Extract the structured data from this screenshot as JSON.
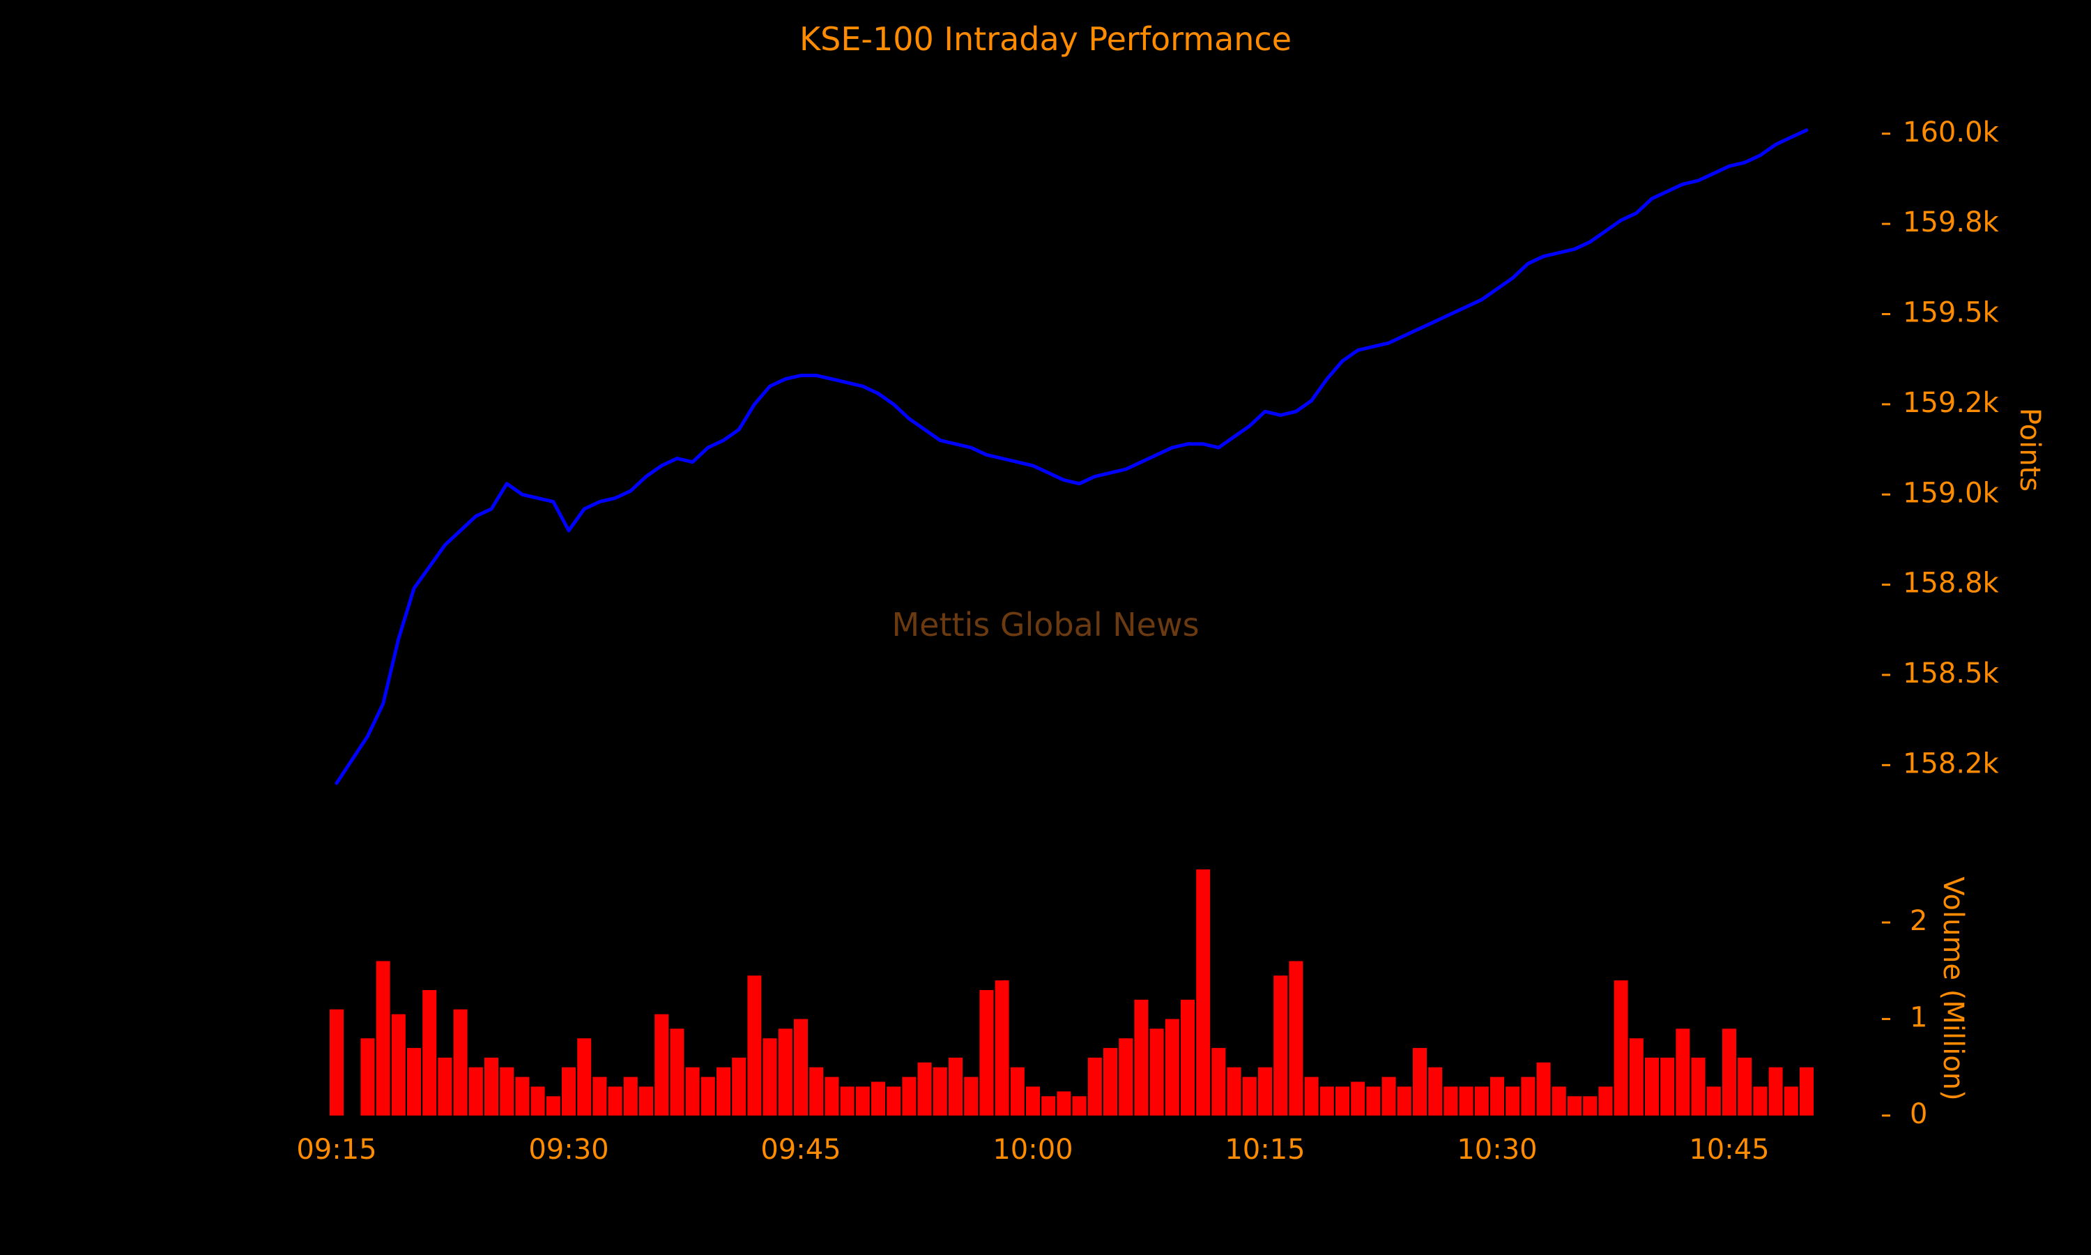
{
  "chart_data": {
    "type": "line",
    "title": "KSE-100 Intraday Performance",
    "watermark": "Mettis Global News",
    "price": {
      "ylabel": "Points",
      "ylim": [
        158100,
        160100
      ],
      "yticks": [
        158250,
        158500,
        158750,
        159000,
        159250,
        159500,
        159750,
        160000
      ],
      "ytick_labels": [
        "158.2k",
        "158.5k",
        "158.8k",
        "159.0k",
        "159.2k",
        "159.5k",
        "159.8k",
        "160.0k"
      ],
      "color": "#0000ff",
      "x": [
        "09:15",
        "09:17",
        "09:18",
        "09:19",
        "09:20",
        "09:21",
        "09:22",
        "09:23",
        "09:24",
        "09:25",
        "09:26",
        "09:27",
        "09:28",
        "09:29",
        "09:30",
        "09:31",
        "09:32",
        "09:33",
        "09:34",
        "09:35",
        "09:36",
        "09:37",
        "09:38",
        "09:39",
        "09:40",
        "09:41",
        "09:42",
        "09:43",
        "09:44",
        "09:45",
        "09:46",
        "09:47",
        "09:48",
        "09:49",
        "09:50",
        "09:51",
        "09:52",
        "09:53",
        "09:54",
        "09:55",
        "09:56",
        "09:57",
        "09:58",
        "09:59",
        "10:00",
        "10:01",
        "10:02",
        "10:03",
        "10:04",
        "10:05",
        "10:06",
        "10:07",
        "10:08",
        "10:09",
        "10:10",
        "10:11",
        "10:12",
        "10:13",
        "10:14",
        "10:15",
        "10:16",
        "10:17",
        "10:18",
        "10:19",
        "10:20",
        "10:21",
        "10:22",
        "10:23",
        "10:24",
        "10:25",
        "10:26",
        "10:27",
        "10:28",
        "10:29",
        "10:30",
        "10:31",
        "10:32",
        "10:33",
        "10:34",
        "10:35",
        "10:36",
        "10:37",
        "10:38",
        "10:39",
        "10:40",
        "10:41",
        "10:42",
        "10:43",
        "10:44",
        "10:45",
        "10:46",
        "10:47",
        "10:48",
        "10:49",
        "10:50"
      ],
      "values": [
        158200,
        158330,
        158420,
        158600,
        158740,
        158800,
        158860,
        158900,
        158940,
        158960,
        159030,
        159000,
        158990,
        158980,
        158900,
        158960,
        158980,
        158990,
        159010,
        159050,
        159080,
        159100,
        159090,
        159130,
        159150,
        159180,
        159250,
        159300,
        159320,
        159330,
        159330,
        159320,
        159310,
        159300,
        159280,
        159250,
        159210,
        159180,
        159150,
        159140,
        159130,
        159110,
        159100,
        159090,
        159080,
        159060,
        159040,
        159030,
        159050,
        159060,
        159070,
        159090,
        159110,
        159130,
        159140,
        159140,
        159130,
        159160,
        159190,
        159230,
        159220,
        159230,
        159260,
        159320,
        159370,
        159400,
        159410,
        159420,
        159440,
        159460,
        159480,
        159500,
        159520,
        159540,
        159570,
        159600,
        159640,
        159660,
        159670,
        159680,
        159700,
        159730,
        159760,
        159780,
        159820,
        159840,
        159860,
        159870,
        159890,
        159910,
        159920,
        159940,
        159970,
        159990,
        160010
      ]
    },
    "volume": {
      "ylabel": "Volume (Million)",
      "ylim": [
        0,
        2.6
      ],
      "yticks": [
        0,
        1,
        2
      ],
      "ytick_labels": [
        "0",
        "1",
        "2"
      ],
      "color": "#ff0000",
      "x": [
        "09:15",
        "09:17",
        "09:18",
        "09:19",
        "09:20",
        "09:21",
        "09:22",
        "09:23",
        "09:24",
        "09:25",
        "09:26",
        "09:27",
        "09:28",
        "09:29",
        "09:30",
        "09:31",
        "09:32",
        "09:33",
        "09:34",
        "09:35",
        "09:36",
        "09:37",
        "09:38",
        "09:39",
        "09:40",
        "09:41",
        "09:42",
        "09:43",
        "09:44",
        "09:45",
        "09:46",
        "09:47",
        "09:48",
        "09:49",
        "09:50",
        "09:51",
        "09:52",
        "09:53",
        "09:54",
        "09:55",
        "09:56",
        "09:57",
        "09:58",
        "09:59",
        "10:00",
        "10:01",
        "10:02",
        "10:03",
        "10:04",
        "10:05",
        "10:06",
        "10:07",
        "10:08",
        "10:09",
        "10:10",
        "10:11",
        "10:12",
        "10:13",
        "10:14",
        "10:15",
        "10:16",
        "10:17",
        "10:18",
        "10:19",
        "10:20",
        "10:21",
        "10:22",
        "10:23",
        "10:24",
        "10:25",
        "10:26",
        "10:27",
        "10:28",
        "10:29",
        "10:30",
        "10:31",
        "10:32",
        "10:33",
        "10:34",
        "10:35",
        "10:36",
        "10:37",
        "10:38",
        "10:39",
        "10:40",
        "10:41",
        "10:42",
        "10:43",
        "10:44",
        "10:45",
        "10:46",
        "10:47",
        "10:48",
        "10:49",
        "10:50"
      ],
      "values": [
        1.1,
        0.8,
        1.6,
        1.05,
        0.7,
        1.3,
        0.6,
        1.1,
        0.5,
        0.6,
        0.5,
        0.4,
        0.3,
        0.2,
        0.5,
        0.8,
        0.4,
        0.3,
        0.4,
        0.3,
        1.05,
        0.9,
        0.5,
        0.4,
        0.5,
        0.6,
        1.45,
        0.8,
        0.9,
        1.0,
        0.5,
        0.4,
        0.3,
        0.3,
        0.35,
        0.3,
        0.4,
        0.55,
        0.5,
        0.6,
        0.4,
        1.3,
        1.4,
        0.5,
        0.3,
        0.2,
        0.25,
        0.2,
        0.6,
        0.7,
        0.8,
        1.2,
        0.9,
        1.0,
        1.2,
        2.55,
        0.7,
        0.5,
        0.4,
        0.5,
        1.45,
        1.6,
        0.4,
        0.3,
        0.3,
        0.35,
        0.3,
        0.4,
        0.3,
        0.7,
        0.5,
        0.3,
        0.3,
        0.3,
        0.4,
        0.3,
        0.4,
        0.55,
        0.3,
        0.2,
        0.2,
        0.3,
        1.4,
        0.8,
        0.6,
        0.6,
        0.9,
        0.6,
        0.3,
        0.9,
        0.6,
        0.3,
        0.5,
        0.3,
        0.5
      ]
    },
    "xticks": [
      "09:15",
      "09:30",
      "09:45",
      "10:00",
      "10:15",
      "10:30",
      "10:45"
    ],
    "grid": false,
    "background": "#000000",
    "text_color": "#ff8c00"
  }
}
